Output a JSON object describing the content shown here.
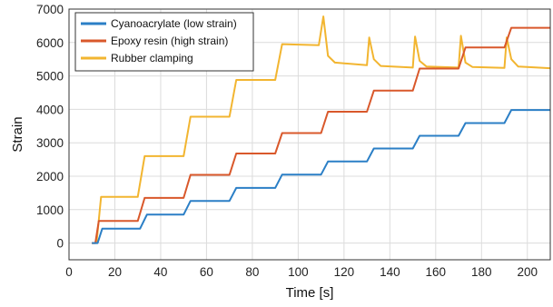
{
  "chart_data": {
    "type": "line",
    "title": "",
    "xlabel": "Time [s]",
    "ylabel": "Strain",
    "xlim": [
      0,
      210
    ],
    "ylim": [
      -500,
      7000
    ],
    "xticks": [
      0,
      20,
      40,
      60,
      80,
      100,
      120,
      140,
      160,
      180,
      200
    ],
    "yticks": [
      0,
      1000,
      2000,
      3000,
      4000,
      5000,
      6000,
      7000
    ],
    "grid": true,
    "legend_position": "top-left",
    "series": [
      {
        "name": "Cyanoacrylate (low strain)",
        "color": "#2b7fc6",
        "steps": [
          [
            10,
            0
          ],
          [
            12.5,
            0
          ],
          [
            14.5,
            430
          ],
          [
            31,
            430
          ],
          [
            34,
            850
          ],
          [
            50,
            850
          ],
          [
            53,
            1260
          ],
          [
            70,
            1260
          ],
          [
            73,
            1650
          ],
          [
            90,
            1650
          ],
          [
            93,
            2050
          ],
          [
            110,
            2050
          ],
          [
            113,
            2440
          ],
          [
            130,
            2440
          ],
          [
            133,
            2830
          ],
          [
            150,
            2830
          ],
          [
            153,
            3210
          ],
          [
            170,
            3210
          ],
          [
            173,
            3590
          ],
          [
            190,
            3590
          ],
          [
            193,
            3980
          ],
          [
            210,
            3980
          ]
        ]
      },
      {
        "name": "Epoxy resin (high strain)",
        "color": "#d9582b",
        "steps": [
          [
            10,
            0
          ],
          [
            11.5,
            0
          ],
          [
            13,
            660
          ],
          [
            30,
            660
          ],
          [
            33,
            1350
          ],
          [
            50,
            1350
          ],
          [
            53,
            2040
          ],
          [
            70,
            2040
          ],
          [
            73,
            2680
          ],
          [
            90,
            2680
          ],
          [
            93,
            3290
          ],
          [
            110,
            3290
          ],
          [
            113,
            3930
          ],
          [
            130,
            3930
          ],
          [
            133,
            4560
          ],
          [
            150,
            4560
          ],
          [
            153,
            5220
          ],
          [
            170,
            5220
          ],
          [
            173,
            5850
          ],
          [
            190,
            5850
          ],
          [
            193,
            6440
          ],
          [
            210,
            6440
          ]
        ]
      },
      {
        "name": "Rubber clamping",
        "color": "#f2b530",
        "steps": [
          [
            10,
            0
          ],
          [
            12,
            0
          ],
          [
            14,
            1380
          ],
          [
            30,
            1380
          ],
          [
            33,
            2600
          ],
          [
            50,
            2600
          ],
          [
            53,
            3780
          ],
          [
            70,
            3780
          ],
          [
            73,
            4880
          ],
          [
            90,
            4880
          ],
          [
            93,
            5950
          ],
          [
            109,
            5920
          ],
          [
            111,
            6780
          ],
          [
            113,
            5600
          ],
          [
            116,
            5400
          ],
          [
            130,
            5320
          ],
          [
            131,
            6150
          ],
          [
            133,
            5500
          ],
          [
            136,
            5300
          ],
          [
            150,
            5250
          ],
          [
            151,
            6180
          ],
          [
            153,
            5450
          ],
          [
            156,
            5280
          ],
          [
            170,
            5250
          ],
          [
            171,
            6200
          ],
          [
            173,
            5400
          ],
          [
            176,
            5270
          ],
          [
            190,
            5240
          ],
          [
            191,
            6150
          ],
          [
            193,
            5500
          ],
          [
            196,
            5280
          ],
          [
            210,
            5230
          ]
        ]
      }
    ]
  }
}
